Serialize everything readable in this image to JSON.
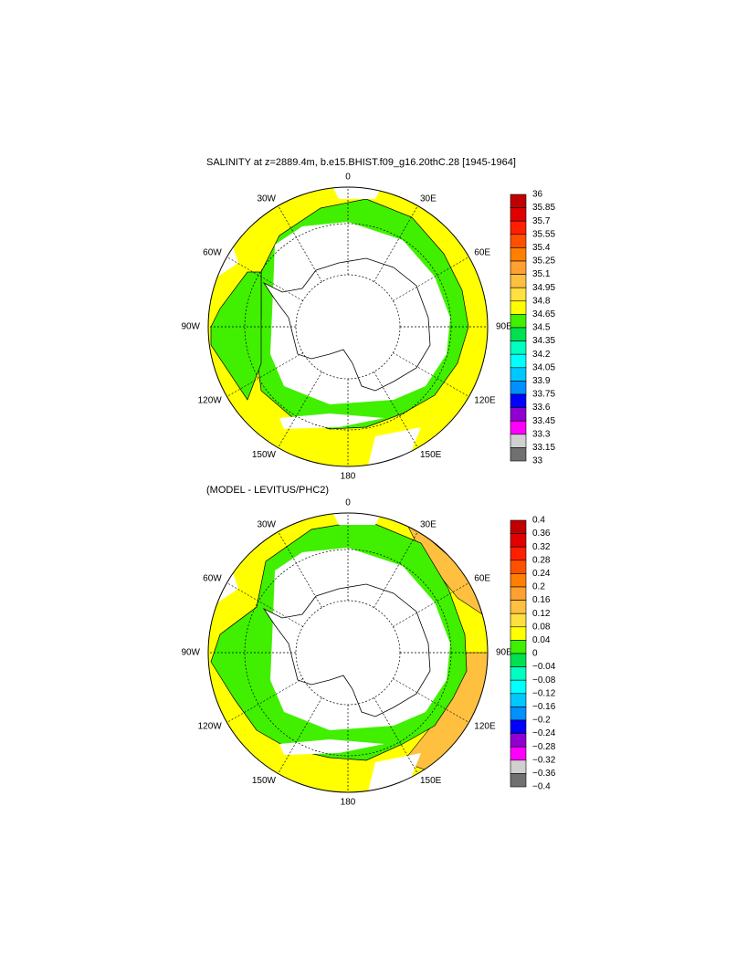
{
  "maps": [
    {
      "title": "SALINITY at z=2889.4m, b.e15.BHIST.f09_g16.20thC.28 [1945-1964]",
      "lon_labels": [
        "0",
        "30E",
        "60E",
        "90E",
        "120E",
        "150E",
        "180",
        "150W",
        "120W",
        "90W",
        "60W",
        "30W"
      ],
      "colorbar": {
        "range": [
          33,
          36
        ],
        "ticks": [
          36,
          35.85,
          35.7,
          35.55,
          35.4,
          35.25,
          35.1,
          34.95,
          34.8,
          34.65,
          34.5,
          34.35,
          34.2,
          34.05,
          33.9,
          33.75,
          33.6,
          33.45,
          33.3,
          33.15,
          33
        ],
        "colors": [
          "#c00000",
          "#e00000",
          "#ff2000",
          "#ff5000",
          "#ff8000",
          "#ffa030",
          "#ffc040",
          "#ffe040",
          "#ffff00",
          "#40f000",
          "#00e050",
          "#00ffc0",
          "#00ffff",
          "#00c8ff",
          "#0090ff",
          "#0000ff",
          "#9000d0",
          "#ff00ff",
          "#d0d0d0",
          "#707070"
        ]
      }
    },
    {
      "title": "(MODEL - LEVITUS/PHC2)",
      "lon_labels": [
        "0",
        "30E",
        "60E",
        "90E",
        "120E",
        "150E",
        "180",
        "150W",
        "120W",
        "90W",
        "60W",
        "30W"
      ],
      "colorbar": {
        "range": [
          -0.4,
          0.4
        ],
        "ticks": [
          0.4,
          0.36,
          0.32,
          0.28,
          0.24,
          0.2,
          0.16,
          0.12,
          0.08,
          0.04,
          0,
          {
            "value": -0.04,
            "label": "−0.04"
          },
          {
            "value": -0.08,
            "label": "−0.08"
          },
          {
            "value": -0.12,
            "label": "−0.12"
          },
          {
            "value": -0.16,
            "label": "−0.16"
          },
          {
            "value": -0.2,
            "label": "−0.2"
          },
          {
            "value": -0.24,
            "label": "−0.24"
          },
          {
            "value": -0.28,
            "label": "−0.28"
          },
          {
            "value": -0.32,
            "label": "−0.32"
          },
          {
            "value": -0.36,
            "label": "−0.36"
          },
          {
            "value": -0.4,
            "label": "−0.4"
          }
        ],
        "colors": [
          "#c00000",
          "#e00000",
          "#ff2000",
          "#ff5000",
          "#ff8000",
          "#ffa030",
          "#ffc040",
          "#ffe040",
          "#ffff00",
          "#40f000",
          "#00e050",
          "#00ffc0",
          "#00ffff",
          "#00c8ff",
          "#0090ff",
          "#0000ff",
          "#9000d0",
          "#ff00ff",
          "#d0d0d0",
          "#707070"
        ]
      }
    }
  ]
}
